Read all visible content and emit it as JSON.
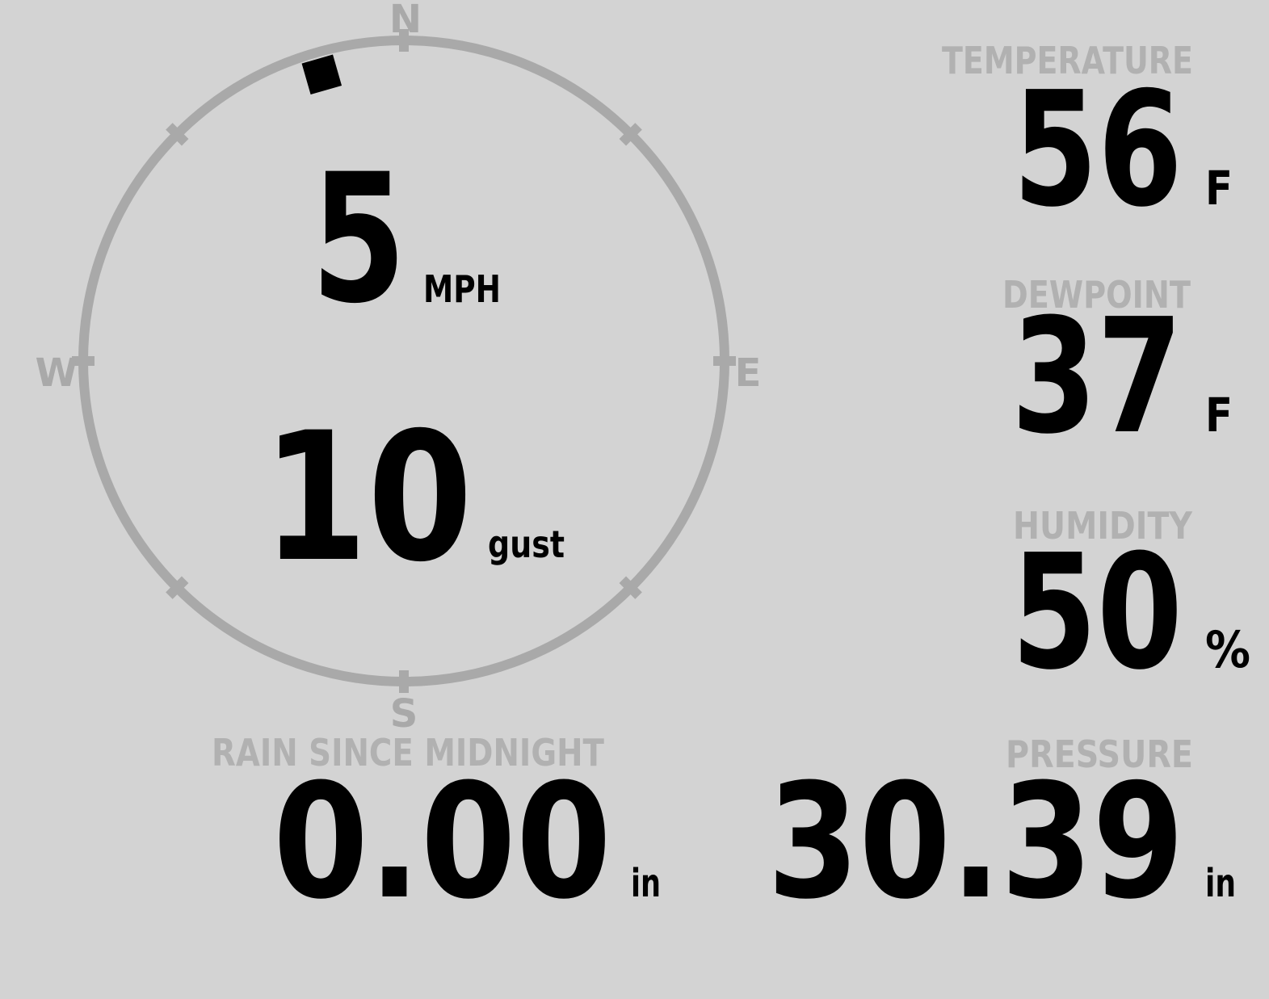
{
  "theme": {
    "background": "#d3d3d3",
    "compass_color": "#a9a9a9",
    "label_color": "#b1b1b1",
    "value_color": "#000000",
    "marker_color": "#000000"
  },
  "wind": {
    "speed": "5",
    "speed_unit": "MPH",
    "gust": "10",
    "gust_unit": "gust",
    "direction_bearing_deg": 344,
    "compass": {
      "north": "N",
      "east": "E",
      "south": "S",
      "west": "W"
    }
  },
  "readings": {
    "temperature": {
      "label": "TEMPERATURE",
      "value": "56",
      "unit": "F"
    },
    "dewpoint": {
      "label": "DEWPOINT",
      "value": "37",
      "unit": "F"
    },
    "humidity": {
      "label": "HUMIDITY",
      "value": "50",
      "unit": "%"
    },
    "pressure": {
      "label": "PRESSURE",
      "value": "30.39",
      "unit": "in"
    },
    "rain_since_midnight": {
      "label": "RAIN SINCE MIDNIGHT",
      "value": "0.00",
      "unit": "in"
    }
  }
}
